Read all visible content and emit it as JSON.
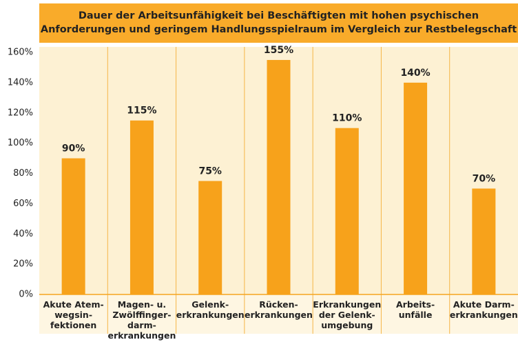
{
  "chart_data": {
    "type": "bar",
    "title": "Dauer der Arbeitsunfähigkeit bei Beschäftigten mit hohen psychischen\nAnforderungen und geringem Handlungsspielraum im Vergleich zur Restbelegschaft",
    "categories": [
      "Akute Atem-\nwegsin-\nfektionen",
      "Magen- u.\nZwölffinger-\ndarm-\nerkrankungen",
      "Gelenk-\nerkrankungen",
      "Rücken-\nerkrankungen",
      "Erkrankungen\nder Gelenk-\numgebung",
      "Arbeits-\nunfälle",
      "Akute Darm-\nerkrankungen"
    ],
    "values": [
      90,
      115,
      75,
      155,
      110,
      140,
      70
    ],
    "value_labels": [
      "90%",
      "115%",
      "75%",
      "155%",
      "110%",
      "140%",
      "70%"
    ],
    "color": "#f7a21b",
    "ylim": [
      0,
      160
    ],
    "yticks": [
      {
        "value": 0,
        "label": "0%"
      },
      {
        "value": 20,
        "label": "20%"
      },
      {
        "value": 40,
        "label": "40%"
      },
      {
        "value": 60,
        "label": "60%"
      },
      {
        "value": 80,
        "label": "80%"
      },
      {
        "value": 100,
        "label": "100%"
      },
      {
        "value": 120,
        "label": "120%"
      },
      {
        "value": 140,
        "label": "140%"
      },
      {
        "value": 160,
        "label": "160%"
      }
    ],
    "grid": false
  }
}
